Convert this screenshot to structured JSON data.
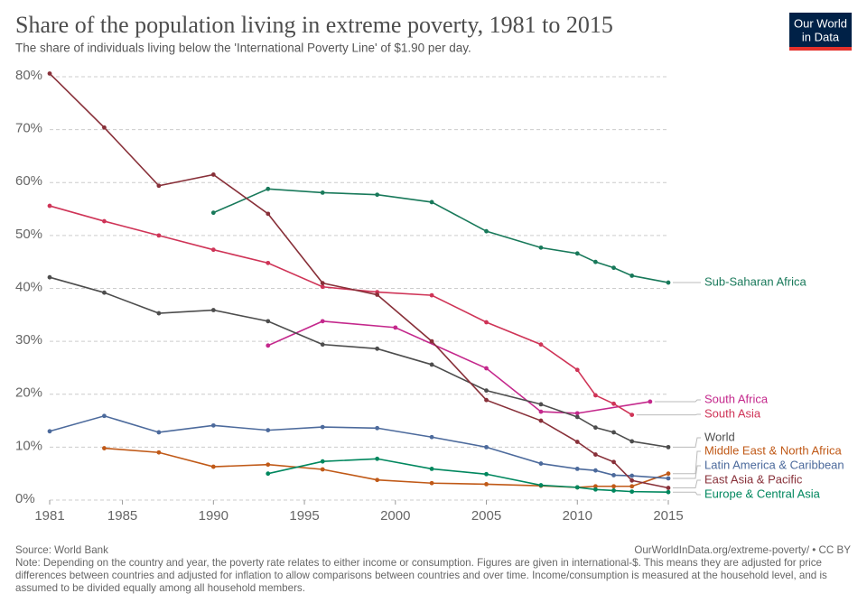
{
  "chart_data": {
    "type": "line",
    "title": "Share of the population living in extreme poverty, 1981 to 2015",
    "subtitle": "The share of individuals living below the 'International Poverty Line' of $1.90 per day.",
    "logo": [
      "Our World",
      "in Data"
    ],
    "source": "Source: World Bank",
    "url": "OurWorldInData.org/extreme-poverty/ • CC BY",
    "note": "Note: Depending on the country and year, the poverty rate relates to either income or consumption. Figures are given in international-$. This means they are adjusted for price differences between countries and adjusted for inflation to allow comparisons between countries and over time. Income/consumption is measured at the household level, and is assumed to be divided equally among all household members.",
    "xlim": [
      1981,
      2015
    ],
    "xticks": [
      1981,
      1985,
      1990,
      1995,
      2000,
      2005,
      2010,
      2015
    ],
    "ylim": [
      0,
      80
    ],
    "yticks": [
      {
        "value": 0,
        "label": "0%"
      },
      {
        "value": 10,
        "label": "10%"
      },
      {
        "value": 20,
        "label": "20%"
      },
      {
        "value": 30,
        "label": "30%"
      },
      {
        "value": 40,
        "label": "40%"
      },
      {
        "value": 50,
        "label": "50%"
      },
      {
        "value": 60,
        "label": "60%"
      },
      {
        "value": 70,
        "label": "70%"
      },
      {
        "value": 80,
        "label": "80%"
      }
    ],
    "grid": true,
    "series": [
      {
        "name": "Sub-Saharan Africa",
        "color": "#18795a",
        "x": [
          1990,
          1993,
          1996,
          1999,
          2002,
          2005,
          2008,
          2010,
          2011,
          2012,
          2013,
          2015
        ],
        "values": [
          54.3,
          58.8,
          58.1,
          57.7,
          56.3,
          50.8,
          47.7,
          46.6,
          45.0,
          43.9,
          42.4,
          41.1
        ]
      },
      {
        "name": "South Africa",
        "color": "#c4288c",
        "x": [
          1993,
          1996,
          2000,
          2005,
          2008,
          2010,
          2014
        ],
        "values": [
          29.2,
          33.8,
          32.6,
          24.9,
          16.7,
          16.4,
          18.6
        ]
      },
      {
        "name": "South Asia",
        "color": "#cf3457",
        "x": [
          1981,
          1984,
          1987,
          1990,
          1993,
          1996,
          1999,
          2002,
          2005,
          2008,
          2010,
          2011,
          2012,
          2013
        ],
        "values": [
          55.6,
          52.7,
          50.0,
          47.3,
          44.8,
          40.3,
          39.3,
          38.7,
          33.6,
          29.4,
          24.6,
          19.8,
          18.2,
          16.1
        ]
      },
      {
        "name": "World",
        "color": "#4d4d4d",
        "x": [
          1981,
          1984,
          1987,
          1990,
          1993,
          1996,
          1999,
          2002,
          2005,
          2008,
          2010,
          2011,
          2012,
          2013,
          2015
        ],
        "values": [
          42.1,
          39.2,
          35.3,
          35.9,
          33.8,
          29.4,
          28.6,
          25.6,
          20.7,
          18.1,
          15.7,
          13.7,
          12.8,
          11.1,
          10.0
        ]
      },
      {
        "name": "Middle East & North Africa",
        "color": "#c05917",
        "x": [
          1984,
          1987,
          1990,
          1993,
          1996,
          1999,
          2002,
          2005,
          2008,
          2010,
          2011,
          2012,
          2013,
          2015
        ],
        "values": [
          9.8,
          9.0,
          6.3,
          6.7,
          5.8,
          3.8,
          3.2,
          3.0,
          2.7,
          2.4,
          2.6,
          2.6,
          2.6,
          5.0
        ]
      },
      {
        "name": "Latin America & Caribbean",
        "color": "#4c6a9c",
        "x": [
          1981,
          1984,
          1987,
          1990,
          1993,
          1996,
          1999,
          2002,
          2005,
          2008,
          2010,
          2011,
          2012,
          2013,
          2015
        ],
        "values": [
          13.0,
          15.9,
          12.8,
          14.1,
          13.2,
          13.8,
          13.6,
          11.9,
          10.0,
          6.9,
          5.9,
          5.6,
          4.7,
          4.6,
          4.1
        ]
      },
      {
        "name": "East Asia & Pacific",
        "color": "#883039",
        "x": [
          1981,
          1984,
          1987,
          1990,
          1993,
          1996,
          1999,
          2002,
          2005,
          2008,
          2010,
          2011,
          2012,
          2013,
          2015
        ],
        "values": [
          80.6,
          70.4,
          59.4,
          61.5,
          54.1,
          41.0,
          38.8,
          30.0,
          18.9,
          15.0,
          11.0,
          8.6,
          7.2,
          3.7,
          2.3
        ]
      },
      {
        "name": "Europe & Central Asia",
        "color": "#00875e",
        "x": [
          1993,
          1996,
          1999,
          2002,
          2005,
          2008,
          2010,
          2011,
          2012,
          2013,
          2015
        ],
        "values": [
          5.0,
          7.3,
          7.8,
          5.9,
          4.9,
          2.8,
          2.4,
          2.0,
          1.8,
          1.6,
          1.5
        ]
      }
    ]
  }
}
